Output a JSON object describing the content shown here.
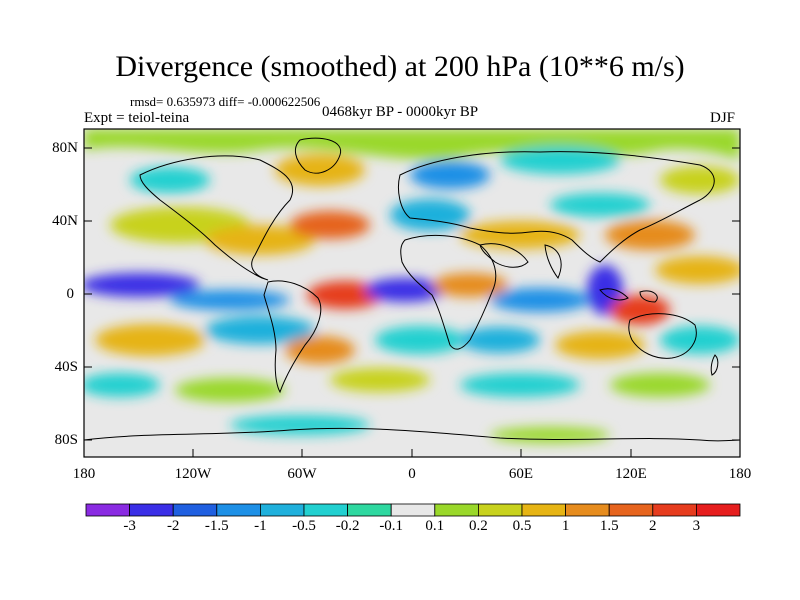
{
  "map": {
    "title": "Divergence (smoothed) at 200 hPa (10**6 m/s)",
    "stats": "rmsd= 0.635973 diff= -0.000622506",
    "experiment": "Expt = teiol-teina",
    "period": "0468kyr BP - 0000kyr BP",
    "season": "DJF",
    "lat_labels": [
      "80N",
      "40N",
      "0",
      "40S",
      "80S"
    ],
    "lon_labels": [
      "180",
      "120W",
      "60W",
      "0",
      "60E",
      "120E",
      "180"
    ],
    "colorbar": {
      "labels": [
        "-3",
        "-2",
        "-1.5",
        "-1",
        "-0.5",
        "-0.2",
        "-0.1",
        "0.1",
        "0.2",
        "0.5",
        "1",
        "1.5",
        "2",
        "3"
      ],
      "colors": [
        "#8a2be2",
        "#3a2ee6",
        "#1f5fe0",
        "#1e90e6",
        "#1fb0dc",
        "#22d0d0",
        "#2ed8a0",
        "#e8e8e8",
        "#9ad82a",
        "#c8d21e",
        "#e6b414",
        "#e68c1e",
        "#e6641e",
        "#e63c1e",
        "#e61e1e"
      ]
    }
  }
}
